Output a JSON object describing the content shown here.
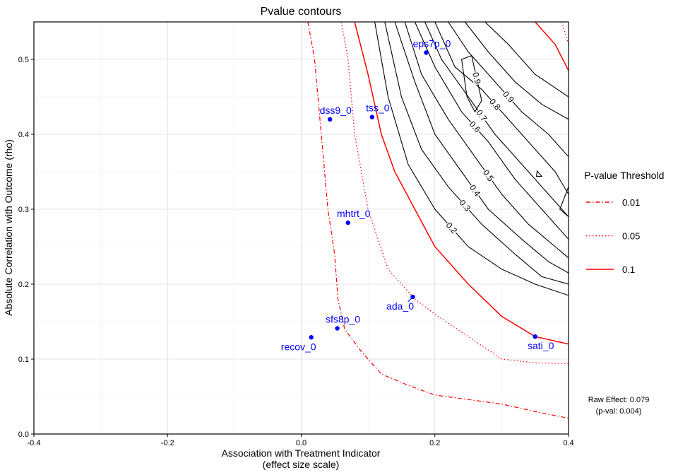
{
  "chart_data": {
    "type": "contour",
    "title": "Pvalue contours",
    "xlabel_line1": "Association with Treatment Indicator",
    "xlabel_line2": "(effect size scale)",
    "ylabel": "Absolute Correlation with Outcome (rho)",
    "xlim": [
      -0.4,
      0.4
    ],
    "ylim": [
      0,
      0.55
    ],
    "x_ticks": [
      {
        "v": -0.4,
        "label": "-0.4"
      },
      {
        "v": -0.2,
        "label": "-0.2"
      },
      {
        "v": 0.0,
        "label": "0.0"
      },
      {
        "v": 0.2,
        "label": "0.2"
      },
      {
        "v": 0.4,
        "label": "0.4"
      }
    ],
    "y_ticks": [
      {
        "v": 0.0,
        "label": "0.0"
      },
      {
        "v": 0.1,
        "label": "0.1"
      },
      {
        "v": 0.2,
        "label": "0.2"
      },
      {
        "v": 0.3,
        "label": "0.3"
      },
      {
        "v": 0.4,
        "label": "0.4"
      },
      {
        "v": 0.5,
        "label": "0.5"
      }
    ],
    "grid": true,
    "legend_title": "P-value Threshold",
    "legend": [
      {
        "label": "0.01",
        "style": "dotdash",
        "color": "#ff0000"
      },
      {
        "label": "0.05",
        "style": "dotted",
        "color": "#ff0000"
      },
      {
        "label": "0.1",
        "style": "solid",
        "color": "#ff0000"
      }
    ],
    "threshold_lines": [
      {
        "level": "0.01",
        "style": "dotdash",
        "points": [
          [
            0.01,
            0.55
          ],
          [
            0.02,
            0.5
          ],
          [
            0.03,
            0.4
          ],
          [
            0.04,
            0.3
          ],
          [
            0.05,
            0.24
          ],
          [
            0.055,
            0.18
          ],
          [
            0.065,
            0.14
          ],
          [
            0.09,
            0.11
          ],
          [
            0.12,
            0.08
          ],
          [
            0.16,
            0.065
          ],
          [
            0.2,
            0.052
          ],
          [
            0.3,
            0.04
          ],
          [
            0.35,
            0.03
          ],
          [
            0.4,
            0.021
          ]
        ]
      },
      {
        "level": "0.05",
        "style": "dotted",
        "points": [
          [
            0.06,
            0.55
          ],
          [
            0.07,
            0.5
          ],
          [
            0.08,
            0.4
          ],
          [
            0.1,
            0.3
          ],
          [
            0.13,
            0.22
          ],
          [
            0.17,
            0.18
          ],
          [
            0.2,
            0.16
          ],
          [
            0.25,
            0.13
          ],
          [
            0.3,
            0.1
          ],
          [
            0.35,
            0.095
          ],
          [
            0.4,
            0.094
          ]
        ]
      },
      {
        "level": "0.1",
        "style": "solid",
        "points": [
          [
            0.08,
            0.55
          ],
          [
            0.1,
            0.48
          ],
          [
            0.12,
            0.4
          ],
          [
            0.14,
            0.35
          ],
          [
            0.17,
            0.3
          ],
          [
            0.2,
            0.25
          ],
          [
            0.25,
            0.2
          ],
          [
            0.3,
            0.157
          ],
          [
            0.35,
            0.13
          ],
          [
            0.4,
            0.12
          ]
        ]
      },
      {
        "level": "0.1",
        "style": "solid",
        "points": [
          [
            0.35,
            0.55
          ],
          [
            0.38,
            0.52
          ],
          [
            0.4,
            0.485
          ]
        ]
      },
      {
        "level": "0.05",
        "style": "dotted",
        "points": [
          [
            0.39,
            0.55
          ],
          [
            0.4,
            0.52
          ]
        ]
      }
    ],
    "contours": [
      {
        "label": "0.2",
        "points": [
          [
            0.11,
            0.55
          ],
          [
            0.13,
            0.45
          ],
          [
            0.16,
            0.36
          ],
          [
            0.2,
            0.3
          ],
          [
            0.25,
            0.25
          ],
          [
            0.3,
            0.22
          ],
          [
            0.35,
            0.2
          ],
          [
            0.4,
            0.185
          ]
        ]
      },
      {
        "label": "0.3",
        "points": [
          [
            0.125,
            0.55
          ],
          [
            0.15,
            0.45
          ],
          [
            0.18,
            0.38
          ],
          [
            0.22,
            0.33
          ],
          [
            0.27,
            0.28
          ],
          [
            0.32,
            0.24
          ],
          [
            0.36,
            0.21
          ],
          [
            0.4,
            0.2
          ]
        ]
      },
      {
        "label": "0.4",
        "points": [
          [
            0.14,
            0.55
          ],
          [
            0.17,
            0.47
          ],
          [
            0.2,
            0.4
          ],
          [
            0.24,
            0.35
          ],
          [
            0.28,
            0.3
          ],
          [
            0.33,
            0.26
          ],
          [
            0.37,
            0.23
          ],
          [
            0.4,
            0.215
          ]
        ]
      },
      {
        "label": "0.5",
        "points": [
          [
            0.155,
            0.55
          ],
          [
            0.18,
            0.48
          ],
          [
            0.22,
            0.42
          ],
          [
            0.26,
            0.37
          ],
          [
            0.3,
            0.32
          ],
          [
            0.34,
            0.28
          ],
          [
            0.38,
            0.25
          ],
          [
            0.4,
            0.235
          ]
        ]
      },
      {
        "label": "0.6",
        "points": [
          [
            0.17,
            0.55
          ],
          [
            0.2,
            0.49
          ],
          [
            0.24,
            0.43
          ],
          [
            0.28,
            0.39
          ],
          [
            0.32,
            0.34
          ],
          [
            0.36,
            0.3
          ],
          [
            0.4,
            0.26
          ]
        ]
      },
      {
        "label": "0.7",
        "points": [
          [
            0.185,
            0.55
          ],
          [
            0.21,
            0.5
          ],
          [
            0.25,
            0.45
          ],
          [
            0.29,
            0.4
          ],
          [
            0.33,
            0.36
          ],
          [
            0.37,
            0.32
          ],
          [
            0.4,
            0.29
          ]
        ]
      },
      {
        "label": "0.8",
        "points": [
          [
            0.2,
            0.55
          ],
          [
            0.23,
            0.49
          ],
          [
            0.27,
            0.46
          ],
          [
            0.31,
            0.42
          ],
          [
            0.35,
            0.38
          ],
          [
            0.38,
            0.35
          ],
          [
            0.4,
            0.32
          ]
        ]
      },
      {
        "label": "0.9",
        "points": [
          [
            0.22,
            0.55
          ],
          [
            0.25,
            0.51
          ],
          [
            0.29,
            0.47
          ],
          [
            0.33,
            0.43
          ],
          [
            0.37,
            0.4
          ],
          [
            0.4,
            0.37
          ]
        ]
      },
      {
        "label": "",
        "points": [
          [
            0.245,
            0.55
          ],
          [
            0.28,
            0.51
          ],
          [
            0.32,
            0.47
          ],
          [
            0.36,
            0.44
          ],
          [
            0.4,
            0.42
          ]
        ]
      },
      {
        "label": "",
        "points": [
          [
            0.275,
            0.55
          ],
          [
            0.31,
            0.52
          ],
          [
            0.35,
            0.48
          ],
          [
            0.4,
            0.45
          ]
        ]
      },
      {
        "label": "0.9",
        "closed": true,
        "points": [
          [
            0.24,
            0.5
          ],
          [
            0.255,
            0.505
          ],
          [
            0.27,
            0.445
          ],
          [
            0.26,
            0.43
          ],
          [
            0.248,
            0.45
          ]
        ]
      },
      {
        "label": "",
        "closed": true,
        "points": [
          [
            0.353,
            0.351
          ],
          [
            0.36,
            0.344
          ],
          [
            0.352,
            0.344
          ]
        ]
      },
      {
        "label": "",
        "points": [
          [
            0.4,
            0.33
          ],
          [
            0.387,
            0.3
          ],
          [
            0.4,
            0.29
          ]
        ]
      }
    ],
    "points": [
      {
        "label": "eps7p_0",
        "x": 0.187,
        "y": 0.509
      },
      {
        "label": "dss9_0",
        "x": 0.043,
        "y": 0.42
      },
      {
        "label": "tss_0",
        "x": 0.106,
        "y": 0.423
      },
      {
        "label": "mhtrt_0",
        "x": 0.07,
        "y": 0.282
      },
      {
        "label": "ada_0",
        "x": 0.167,
        "y": 0.183
      },
      {
        "label": "sfs8p_0",
        "x": 0.054,
        "y": 0.141
      },
      {
        "label": "recov_0",
        "x": 0.015,
        "y": 0.129
      },
      {
        "label": "sati_0",
        "x": 0.35,
        "y": 0.13
      }
    ],
    "point_color": "#0000ff",
    "contour_color": "#000000",
    "threshold_color": "#ff0000",
    "annotation_line1": "Raw Effect: 0.079",
    "annotation_line2": "(p-val: 0.004)"
  }
}
